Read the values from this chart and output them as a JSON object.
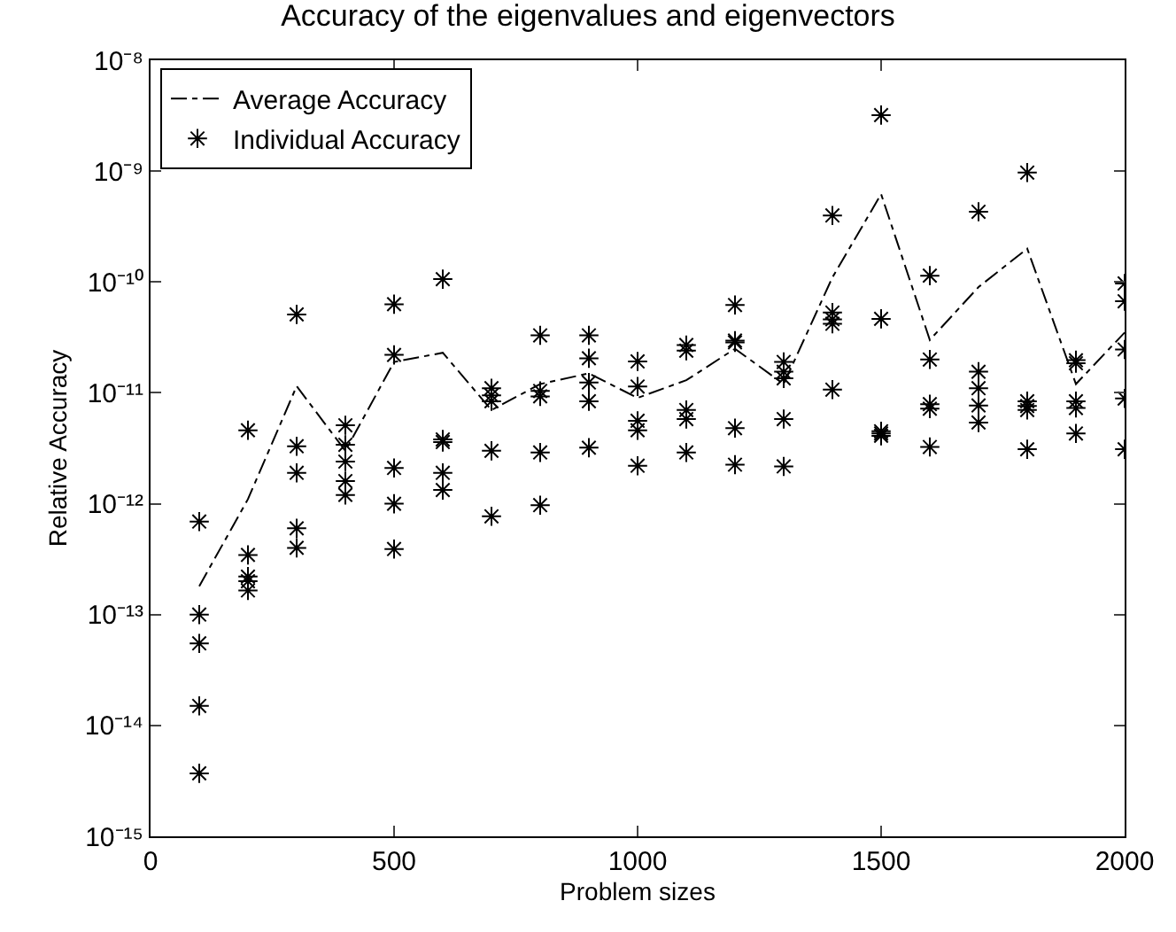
{
  "chart_data": {
    "type": "scatter",
    "title": "Accuracy of the eigenvalues and eigenvectors",
    "xlabel": "Problem sizes",
    "ylabel": "Relative Accuracy",
    "log": "y",
    "legend": "top left",
    "xlim": [
      0,
      2000
    ],
    "xticks": [
      0,
      500,
      1000,
      1500,
      2000
    ],
    "ylim": [
      1e-15,
      1e-08
    ],
    "yticks": [
      {
        "value": 1e-15,
        "label": "10⁻¹⁵"
      },
      {
        "value": 1e-14,
        "label": "10⁻¹⁴"
      },
      {
        "value": 1e-13,
        "label": "10⁻¹³"
      },
      {
        "value": 1e-12,
        "label": "10⁻¹²"
      },
      {
        "value": 1e-11,
        "label": "10⁻¹¹"
      },
      {
        "value": 1e-10,
        "label": "10⁻¹⁰"
      },
      {
        "value": 1e-09,
        "label": "10⁻⁹"
      },
      {
        "value": 1e-08,
        "label": "10⁻⁸"
      }
    ],
    "series": [
      {
        "name": "Average Accuracy",
        "type": "line",
        "color": "#000000",
        "line_style": "dashed",
        "marker": "none",
        "x": [
          100,
          200,
          300,
          400,
          500,
          600,
          700,
          800,
          900,
          1000,
          1100,
          1200,
          1300,
          1400,
          1500,
          1600,
          1700,
          1800,
          1900,
          2000
        ],
        "values": [
          1.8e-13,
          1.1e-12,
          1.15e-11,
          3e-12,
          1.9e-11,
          2.3e-11,
          7e-12,
          1.2e-11,
          1.5e-11,
          9e-12,
          1.3e-11,
          2.5e-11,
          1.2e-11,
          1.1e-10,
          6.2e-10,
          3e-11,
          9e-11,
          2e-10,
          1.2e-11,
          3.5e-11
        ]
      },
      {
        "name": "Individual Accuracy",
        "color": "#000000",
        "marker": "cross",
        "x": [
          100,
          100,
          100,
          100,
          100,
          200,
          200,
          200,
          200,
          200,
          300,
          300,
          300,
          300,
          300,
          400,
          400,
          400,
          400,
          400,
          500,
          500,
          500,
          500,
          500,
          600,
          600,
          600,
          600,
          600,
          700,
          700,
          700,
          700,
          700,
          800,
          800,
          800,
          800,
          800,
          900,
          900,
          900,
          900,
          900,
          1000,
          1000,
          1000,
          1000,
          1000,
          1100,
          1100,
          1100,
          1100,
          1100,
          1200,
          1200,
          1200,
          1200,
          1200,
          1300,
          1300,
          1300,
          1300,
          1300,
          1400,
          1400,
          1400,
          1400,
          1400,
          1500,
          1500,
          1500,
          1500,
          1500,
          1600,
          1600,
          1600,
          1600,
          1600,
          1700,
          1700,
          1700,
          1700,
          1700,
          1800,
          1800,
          1800,
          1800,
          1800,
          1900,
          1900,
          1900,
          1900,
          1900,
          2000,
          2000,
          2000,
          2000,
          2000
        ],
        "values": [
          6.9e-13,
          1e-13,
          5.5e-14,
          1.5e-14,
          3.7e-15,
          4.6e-12,
          3.45e-13,
          2.2e-13,
          2e-13,
          1.65e-13,
          5.1e-11,
          3.3e-12,
          1.9e-12,
          6e-13,
          4e-13,
          5.1e-12,
          3.4e-12,
          2.4e-12,
          1.6e-12,
          1.2e-12,
          6.3e-11,
          2.2e-11,
          2.1e-12,
          1e-12,
          3.9e-13,
          1.06e-10,
          3.8e-12,
          3.6e-12,
          1.9e-12,
          1.33e-12,
          1.1e-11,
          9.5e-12,
          8.4e-12,
          3e-12,
          7.7e-13,
          3.3e-11,
          1.04e-11,
          9.3e-12,
          2.9e-12,
          9.7e-13,
          3.3e-11,
          2.05e-11,
          1.24e-11,
          8.4e-12,
          3.2e-12,
          1.92e-11,
          1.14e-11,
          5.6e-12,
          4.6e-12,
          2.2e-12,
          2.7e-11,
          2.4e-11,
          7e-12,
          5.8e-12,
          2.9e-12,
          6.2e-11,
          2.96e-11,
          2.85e-11,
          4.8e-12,
          2.25e-12,
          1.9e-11,
          1.55e-11,
          1.35e-11,
          5.8e-12,
          2.17e-12,
          3.98e-10,
          5.3e-11,
          4.6e-11,
          4.2e-11,
          1.07e-11,
          3.2e-09,
          4.65e-11,
          4.5e-12,
          4.3e-12,
          4.1e-12,
          1.14e-10,
          2e-11,
          7.9e-12,
          7.2e-12,
          3.25e-12,
          4.3e-10,
          1.55e-11,
          1.1e-11,
          7.7e-12,
          5.4e-12,
          9.7e-10,
          8.4e-12,
          7.6e-12,
          7e-12,
          3.1e-12,
          1.97e-11,
          1.85e-11,
          8.4e-12,
          7.3e-12,
          4.3e-12,
          9.7e-11,
          6.7e-11,
          2.46e-11,
          8.9e-12,
          3.1e-12
        ]
      }
    ]
  }
}
